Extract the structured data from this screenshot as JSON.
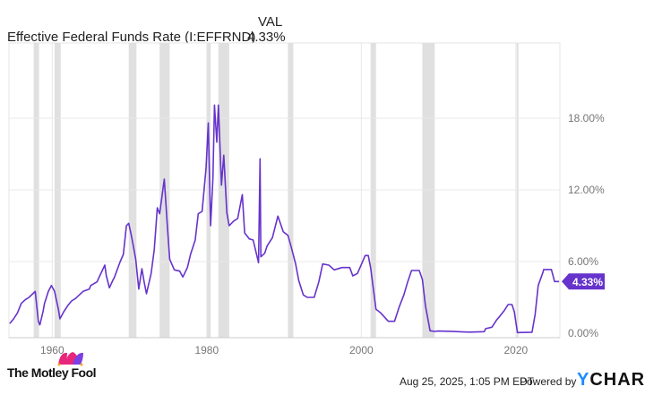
{
  "header": {
    "series_label": "Effective Federal Funds Rate (I:EFFRND)",
    "val_header": "VAL",
    "val": "4.33%"
  },
  "footer": {
    "brand": "The Motley Fool",
    "timestamp": "Aug 25, 2025, 1:05 PM EDT",
    "powered_by": "Powered by",
    "ycharts": "YCHARTS"
  },
  "colors": {
    "line": "#6633cc",
    "recession": "#e0e0e0",
    "grid": "#e8e8e8",
    "ycharts": "#1a8cff"
  },
  "chart_data": {
    "type": "line",
    "title": "",
    "xlabel": "",
    "ylabel": "",
    "xlim": [
      1954.4,
      2025.7
    ],
    "ylim": [
      0,
      20.5
    ],
    "x_ticks": [
      1960,
      1980,
      2000,
      2020
    ],
    "x_tick_labels": [
      "1960",
      "1980",
      "2000",
      "2020"
    ],
    "y_ticks": [
      0,
      6,
      12,
      18
    ],
    "y_tick_labels": [
      "0.00%",
      "6.00%",
      "12.00%",
      "18.00%"
    ],
    "y_axis_side": "right",
    "grid": true,
    "last_value_label": "4.33%",
    "recessions": [
      [
        1957.6,
        1958.3
      ],
      [
        1960.3,
        1961.1
      ],
      [
        1969.9,
        1970.9
      ],
      [
        1973.9,
        1975.2
      ],
      [
        1980.0,
        1980.5
      ],
      [
        1981.5,
        1982.9
      ],
      [
        1990.5,
        1991.2
      ],
      [
        2001.2,
        2001.9
      ],
      [
        2007.9,
        2009.5
      ],
      [
        2020.1,
        2020.3
      ]
    ],
    "series": [
      {
        "values": [
          [
            1954.5,
            0.8
          ],
          [
            1955,
            1.2
          ],
          [
            1955.5,
            1.7
          ],
          [
            1956,
            2.5
          ],
          [
            1956.5,
            2.8
          ],
          [
            1957,
            3.0
          ],
          [
            1957.8,
            3.5
          ],
          [
            1958.2,
            1.0
          ],
          [
            1958.4,
            0.7
          ],
          [
            1958.8,
            1.8
          ],
          [
            1959,
            2.5
          ],
          [
            1959.5,
            3.5
          ],
          [
            1959.9,
            4.0
          ],
          [
            1960.3,
            3.5
          ],
          [
            1960.8,
            2.0
          ],
          [
            1961,
            1.2
          ],
          [
            1961.5,
            1.8
          ],
          [
            1962,
            2.3
          ],
          [
            1962.5,
            2.7
          ],
          [
            1963,
            2.9
          ],
          [
            1963.5,
            3.2
          ],
          [
            1964,
            3.5
          ],
          [
            1964.8,
            3.7
          ],
          [
            1965,
            4.0
          ],
          [
            1965.8,
            4.3
          ],
          [
            1966,
            4.6
          ],
          [
            1966.8,
            5.7
          ],
          [
            1967,
            4.8
          ],
          [
            1967.4,
            3.8
          ],
          [
            1967.9,
            4.5
          ],
          [
            1968,
            4.6
          ],
          [
            1968.8,
            6.0
          ],
          [
            1969.2,
            6.6
          ],
          [
            1969.6,
            9.0
          ],
          [
            1969.9,
            9.2
          ],
          [
            1970.3,
            8.0
          ],
          [
            1970.8,
            6.2
          ],
          [
            1971.2,
            3.7
          ],
          [
            1971.6,
            5.4
          ],
          [
            1971.9,
            4.3
          ],
          [
            1972.2,
            3.3
          ],
          [
            1972.8,
            5.0
          ],
          [
            1973.2,
            7.0
          ],
          [
            1973.6,
            10.5
          ],
          [
            1973.9,
            10.0
          ],
          [
            1974.5,
            12.9
          ],
          [
            1974.9,
            9.0
          ],
          [
            1975.2,
            6.2
          ],
          [
            1975.8,
            5.3
          ],
          [
            1976.5,
            5.2
          ],
          [
            1976.9,
            4.7
          ],
          [
            1977.5,
            5.5
          ],
          [
            1977.9,
            6.6
          ],
          [
            1978.5,
            7.8
          ],
          [
            1978.9,
            10.0
          ],
          [
            1979.4,
            10.2
          ],
          [
            1979.9,
            13.8
          ],
          [
            1980.2,
            17.6
          ],
          [
            1980.5,
            9.0
          ],
          [
            1980.8,
            13.0
          ],
          [
            1981.0,
            19.1
          ],
          [
            1981.3,
            16.0
          ],
          [
            1981.5,
            19.1
          ],
          [
            1981.9,
            12.4
          ],
          [
            1982.2,
            14.9
          ],
          [
            1982.6,
            10.1
          ],
          [
            1982.9,
            9.0
          ],
          [
            1983.5,
            9.4
          ],
          [
            1984,
            9.6
          ],
          [
            1984.6,
            11.6
          ],
          [
            1984.9,
            8.4
          ],
          [
            1985.5,
            7.9
          ],
          [
            1986,
            7.8
          ],
          [
            1986.7,
            5.9
          ],
          [
            1986.9,
            14.6
          ],
          [
            1987.0,
            6.4
          ],
          [
            1987.5,
            6.7
          ],
          [
            1987.8,
            7.3
          ],
          [
            1988.5,
            8.0
          ],
          [
            1989.2,
            9.8
          ],
          [
            1989.9,
            8.5
          ],
          [
            1990.5,
            8.2
          ],
          [
            1990.9,
            7.3
          ],
          [
            1991.5,
            5.8
          ],
          [
            1991.9,
            4.4
          ],
          [
            1992.5,
            3.2
          ],
          [
            1993,
            3.0
          ],
          [
            1993.9,
            3.0
          ],
          [
            1994.5,
            4.3
          ],
          [
            1995,
            5.8
          ],
          [
            1995.8,
            5.7
          ],
          [
            1996.5,
            5.3
          ],
          [
            1997.5,
            5.5
          ],
          [
            1998.5,
            5.5
          ],
          [
            1998.9,
            4.8
          ],
          [
            1999.5,
            5.0
          ],
          [
            1999.9,
            5.6
          ],
          [
            2000.5,
            6.5
          ],
          [
            2000.9,
            6.5
          ],
          [
            2001.2,
            5.5
          ],
          [
            2001.9,
            2.0
          ],
          [
            2002.5,
            1.7
          ],
          [
            2003.5,
            1.0
          ],
          [
            2004.3,
            1.0
          ],
          [
            2004.9,
            2.2
          ],
          [
            2005.5,
            3.2
          ],
          [
            2006,
            4.3
          ],
          [
            2006.5,
            5.25
          ],
          [
            2007.5,
            5.25
          ],
          [
            2007.9,
            4.5
          ],
          [
            2008.3,
            2.3
          ],
          [
            2008.9,
            0.2
          ],
          [
            2009.5,
            0.15
          ],
          [
            2010,
            0.18
          ],
          [
            2012,
            0.14
          ],
          [
            2014,
            0.09
          ],
          [
            2015.9,
            0.13
          ],
          [
            2016.1,
            0.38
          ],
          [
            2016.9,
            0.5
          ],
          [
            2017.5,
            1.1
          ],
          [
            2017.9,
            1.4
          ],
          [
            2018.5,
            1.9
          ],
          [
            2019,
            2.4
          ],
          [
            2019.5,
            2.4
          ],
          [
            2019.8,
            1.8
          ],
          [
            2020.2,
            0.05
          ],
          [
            2022.1,
            0.08
          ],
          [
            2022.5,
            1.6
          ],
          [
            2022.9,
            4.0
          ],
          [
            2023.5,
            5.08
          ],
          [
            2023.6,
            5.33
          ],
          [
            2024.6,
            5.33
          ],
          [
            2024.9,
            4.6
          ],
          [
            2025.0,
            4.33
          ],
          [
            2025.6,
            4.33
          ]
        ]
      }
    ]
  }
}
